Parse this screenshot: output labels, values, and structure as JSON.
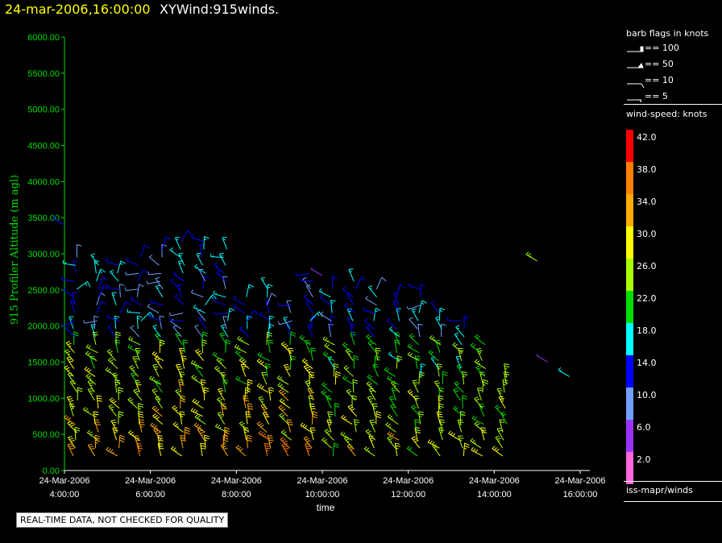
{
  "header": {
    "datetime": "24-mar-2006,16:00:00",
    "product": "XYWind:915winds."
  },
  "notice": "REAL-TIME DATA, NOT CHECKED FOR QUALITY",
  "legend": {
    "barb_title": "barb flags in knots",
    "barb_items": [
      "== 100",
      "== 50",
      "== 10",
      "== 5"
    ],
    "speed_title": "wind-speed: knots",
    "speed_levels": [
      {
        "label": "42.0",
        "color": "#ff0000"
      },
      {
        "label": "38.0",
        "color": "#ff7f00"
      },
      {
        "label": "34.0",
        "color": "#ffaa00"
      },
      {
        "label": "30.0",
        "color": "#ffff00"
      },
      {
        "label": "26.0",
        "color": "#aaff00"
      },
      {
        "label": "22.0",
        "color": "#00dd00"
      },
      {
        "label": "18.0",
        "color": "#00ffff"
      },
      {
        "label": "14.0",
        "color": "#0000ff"
      },
      {
        "label": "10.0",
        "color": "#6fa0ff"
      },
      {
        "label": "6.0",
        "color": "#9933ff"
      },
      {
        "label": "2.0",
        "color": "#ff66dd"
      }
    ],
    "source": "iss-mapr/winds"
  },
  "chart_data": {
    "type": "scatter",
    "title": "24-mar-2006,16:00:00 XYWind:915winds.",
    "xlabel": "time",
    "ylabel": "915 Profiler Altitude (m agl)",
    "xlim": [
      "24-Mar-2006 04:00:00",
      "24-Mar-2006 16:00:00"
    ],
    "ylim": [
      0,
      6000
    ],
    "y_ticks": [
      "0.00",
      "500.00",
      "1000.00",
      "1500.00",
      "2000.00",
      "2500.00",
      "3000.00",
      "3500.00",
      "4000.00",
      "4500.00",
      "5000.00",
      "5500.00",
      "6000.00"
    ],
    "x_ticks": [
      {
        "date": "24-Mar-2006",
        "time": "4:00:00"
      },
      {
        "date": "24-Mar-2006",
        "time": "6:00:00"
      },
      {
        "date": "24-Mar-2006",
        "time": "8:00:00"
      },
      {
        "date": "24-Mar-2006",
        "time": "10:00:00"
      },
      {
        "date": "24-Mar-2006",
        "time": "12:00:00"
      },
      {
        "date": "24-Mar-2006",
        "time": "14:00:00"
      },
      {
        "date": "24-Mar-2006",
        "time": "16:00:00"
      }
    ],
    "profile_times": [
      "04:15",
      "04:45",
      "05:15",
      "05:45",
      "06:15",
      "06:45",
      "07:15",
      "07:45",
      "08:15",
      "08:45",
      "09:15",
      "09:45",
      "10:15",
      "10:45",
      "11:15",
      "11:45",
      "12:15",
      "12:45",
      "13:15",
      "13:45",
      "14:15"
    ],
    "profile_top_m": [
      3000,
      2900,
      2900,
      3000,
      3100,
      3200,
      3200,
      3100,
      2500,
      2600,
      2300,
      2800,
      2600,
      2700,
      2600,
      2500,
      2600,
      2200,
      2100,
      1800,
      1300
    ],
    "sparse_points": [
      {
        "time": "04:00",
        "alt_m": 3400,
        "speed_kt": 14
      },
      {
        "time": "10:00",
        "alt_m": 2700,
        "speed_kt": 6
      },
      {
        "time": "15:00",
        "alt_m": 2900,
        "speed_kt": 26
      },
      {
        "time": "15:15",
        "alt_m": 1500,
        "speed_kt": 6
      },
      {
        "time": "15:45",
        "alt_m": 1300,
        "speed_kt": 18
      }
    ],
    "grid": false
  }
}
